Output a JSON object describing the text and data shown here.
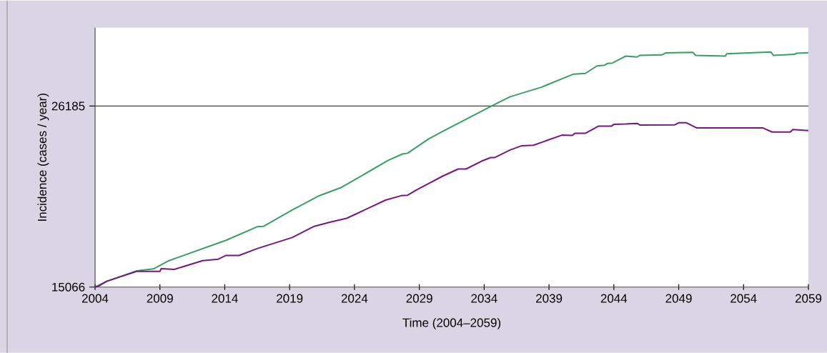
{
  "chart_data": {
    "type": "line",
    "xlabel": "Time (2004–2059)",
    "ylabel": "Incidence (cases / year)",
    "xlim": [
      2004,
      2059
    ],
    "ylim": [
      15066,
      31000
    ],
    "xticks": [
      2004,
      2009,
      2014,
      2019,
      2024,
      2029,
      2034,
      2039,
      2044,
      2049,
      2054,
      2059
    ],
    "yticks": [
      15066,
      26185
    ],
    "ref_lines": [
      {
        "axis": "y",
        "value": 26185,
        "color": "#404040"
      }
    ],
    "series": [
      {
        "color": "#3a9e64",
        "x": [
          2004,
          2004.9,
          2007.2,
          2008.5,
          2009.7,
          2014.1,
          2016.5,
          2017.0,
          2019.2,
          2021.2,
          2023.0,
          2026.6,
          2027.7,
          2028.1,
          2029.7,
          2030.8,
          2034.7,
          2036.0,
          2038.4,
          2040.9,
          2041.8,
          2042.7,
          2043.3,
          2043.5,
          2043.9,
          2044.9,
          2045.8,
          2046.0,
          2047.7,
          2048.0,
          2050.1,
          2050.3,
          2052.6,
          2052.7,
          2056.1,
          2056.3,
          2057.9,
          2058.1,
          2059
        ],
        "values": [
          15066,
          15420,
          16060,
          16180,
          16690,
          17940,
          18770,
          18800,
          19800,
          20650,
          21190,
          22850,
          23240,
          23290,
          24160,
          24630,
          26240,
          26760,
          27340,
          28150,
          28190,
          28650,
          28700,
          28800,
          28830,
          29250,
          29200,
          29300,
          29330,
          29450,
          29480,
          29300,
          29260,
          29400,
          29510,
          29300,
          29360,
          29430,
          29460
        ]
      },
      {
        "color": "#76177e",
        "x": [
          2004,
          2004.3,
          2004.9,
          2007.2,
          2009.0,
          2009.1,
          2010.1,
          2012.3,
          2013.5,
          2014.1,
          2015.1,
          2016.5,
          2019.2,
          2020.9,
          2022.2,
          2023.4,
          2026.4,
          2027.6,
          2028.1,
          2028.8,
          2030.8,
          2032.0,
          2032.6,
          2033.8,
          2034.5,
          2034.8,
          2036.0,
          2036.9,
          2037.8,
          2040.0,
          2040.8,
          2041.0,
          2041.8,
          2042.8,
          2043.8,
          2044.0,
          2044.9,
          2045.8,
          2046.0,
          2048.7,
          2049.0,
          2049.6,
          2050.4,
          2055.5,
          2056.2,
          2057.6,
          2057.8,
          2059
        ],
        "values": [
          15066,
          15140,
          15420,
          16030,
          16030,
          16200,
          16150,
          16690,
          16780,
          17010,
          17010,
          17430,
          18110,
          18800,
          19070,
          19290,
          20410,
          20680,
          20710,
          21040,
          21880,
          22320,
          22320,
          22800,
          23020,
          23020,
          23490,
          23750,
          23780,
          24400,
          24380,
          24510,
          24510,
          24950,
          24950,
          25060,
          25080,
          25120,
          25020,
          25030,
          25160,
          25160,
          24840,
          24840,
          24590,
          24590,
          24740,
          24680
        ]
      }
    ]
  }
}
